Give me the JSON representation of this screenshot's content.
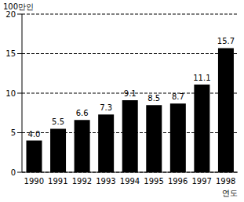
{
  "chart_data": {
    "type": "bar",
    "y_label": "100만인",
    "x_label": "연도",
    "categories": [
      "1990",
      "1991",
      "1992",
      "1993",
      "1994",
      "1995",
      "1996",
      "1997",
      "1998"
    ],
    "values": [
      4.0,
      5.5,
      6.6,
      7.3,
      9.1,
      8.5,
      8.7,
      11.1,
      15.7
    ],
    "value_labels": [
      "4.0",
      "5.5",
      "6.6",
      "7.3",
      "9.1",
      "8.5",
      "8.7",
      "11.1",
      "15.7"
    ],
    "color": "#000000",
    "ylim": [
      0,
      20
    ],
    "yticks": [
      0,
      5,
      10,
      15,
      20
    ],
    "grid": true,
    "data_labels": true
  }
}
